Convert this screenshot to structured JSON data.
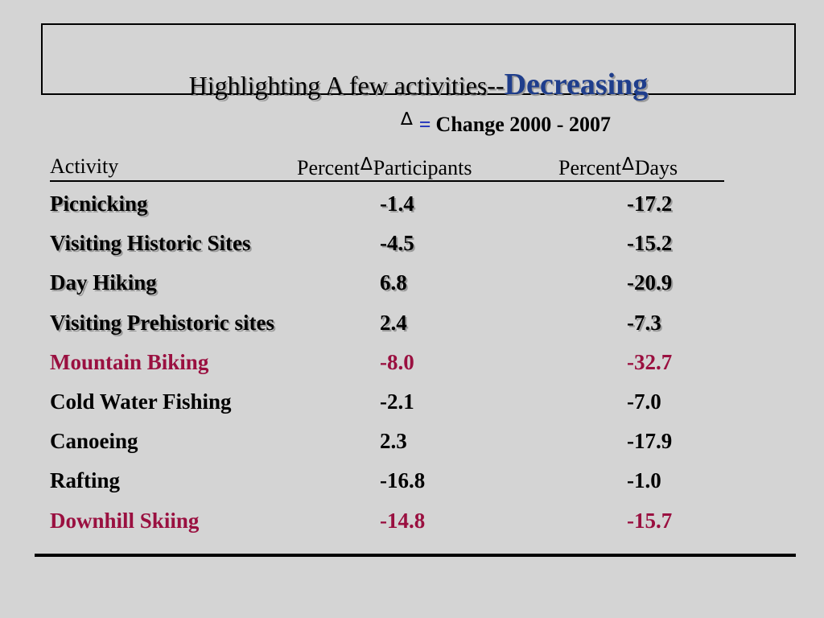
{
  "title": {
    "main": "Highlighting A few activities--",
    "accent": "Decreasing"
  },
  "legend": {
    "symbol": "∆",
    "equals": "=",
    "text": "Change 2000 - 2007"
  },
  "header": {
    "activity": "Activity",
    "percent_1": "Percent",
    "participants": "Participants",
    "percent_2": "Percent",
    "days": "Days"
  },
  "rows": [
    {
      "activity": "Picnicking",
      "participants": "-1.4",
      "days": "-17.2",
      "style": "shadow"
    },
    {
      "activity": "Visiting Historic Sites",
      "participants": "-4.5",
      "days": "-15.2",
      "style": "shadow"
    },
    {
      "activity": "Day Hiking",
      "participants": " 6.8",
      "days": "-20.9",
      "style": "shadow"
    },
    {
      "activity": "Visiting Prehistoric sites",
      "participants": " 2.4",
      "days": "-7.3",
      "style": "shadow"
    },
    {
      "activity": "Mountain Biking",
      "participants": "-8.0",
      "days": "-32.7",
      "style": "highlight"
    },
    {
      "activity": "Cold Water Fishing",
      "participants": "-2.1",
      "days": "-7.0",
      "style": "plain"
    },
    {
      "activity": "Canoeing",
      "participants": " 2.3",
      "days": "-17.9",
      "style": "plain"
    },
    {
      "activity": "Rafting",
      "participants": "-16.8",
      "days": "-1.0",
      "style": "plain"
    },
    {
      "activity": "Downhill Skiing",
      "participants": "-14.8",
      "days": "-15.7",
      "style": "highlight"
    }
  ],
  "colors": {
    "background": "#d4d4d4",
    "accent_blue": "#1f3e8c",
    "equals_blue": "#2233bb",
    "highlight_red": "#9a1040"
  }
}
